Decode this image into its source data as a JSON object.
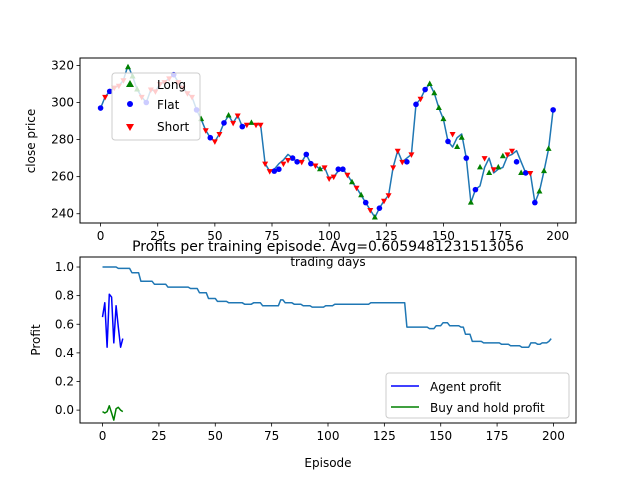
{
  "colors": {
    "price_line": "#1f77b4",
    "long": "#008000",
    "flat": "#0000ff",
    "short": "#ff0000",
    "agent": "#0000ff",
    "buyhold": "#008000",
    "profit_line": "#1f77b4"
  },
  "chart_data": [
    {
      "type": "line",
      "title": "",
      "xlabel": "trading days",
      "ylabel": "close price",
      "xlim": [
        -9,
        208
      ],
      "ylim": [
        235,
        324
      ],
      "xticks": [
        0,
        25,
        50,
        75,
        100,
        125,
        150,
        175,
        200
      ],
      "yticks": [
        240,
        260,
        280,
        300,
        320
      ],
      "legend": {
        "position": "upper-left",
        "entries": [
          "Long",
          "Flat",
          "Short"
        ]
      },
      "x": [
        0,
        2,
        4,
        6,
        8,
        10,
        12,
        14,
        16,
        18,
        20,
        22,
        24,
        26,
        28,
        30,
        32,
        34,
        36,
        38,
        40,
        42,
        44,
        46,
        48,
        50,
        52,
        54,
        56,
        58,
        60,
        62,
        64,
        66,
        68,
        70,
        72,
        74,
        76,
        78,
        80,
        82,
        84,
        86,
        88,
        90,
        92,
        94,
        96,
        98,
        100,
        102,
        104,
        106,
        108,
        110,
        112,
        114,
        116,
        118,
        120,
        122,
        124,
        126,
        128,
        130,
        132,
        134,
        136,
        138,
        140,
        142,
        144,
        146,
        148,
        150,
        152,
        154,
        156,
        158,
        160,
        162,
        164,
        166,
        168,
        170,
        172,
        174,
        176,
        178,
        180,
        182,
        184,
        186,
        188,
        190,
        192,
        194,
        196,
        198
      ],
      "series": [
        {
          "name": "close price",
          "values": [
            297,
            303,
            306,
            308,
            309,
            312,
            320,
            314,
            307,
            303,
            300,
            307,
            306,
            310,
            311,
            313,
            315,
            311,
            308,
            305,
            303,
            296,
            291,
            285,
            281,
            279,
            283,
            289,
            293,
            289,
            293,
            287,
            288,
            289,
            288,
            288,
            267,
            263,
            264,
            267,
            269,
            272,
            270,
            268,
            268,
            272,
            267,
            266,
            264,
            265,
            259,
            260,
            263,
            264,
            261,
            257,
            254,
            250,
            246,
            242,
            238,
            243,
            247,
            250,
            265,
            274,
            268,
            270,
            272,
            299,
            302,
            307,
            310,
            305,
            297,
            291,
            279,
            276,
            281,
            283,
            270,
            246,
            253,
            255,
            265,
            270,
            262,
            264,
            265,
            271,
            272,
            274,
            268,
            262,
            262,
            246,
            252,
            263,
            275,
            296
          ]
        }
      ],
      "markers": {
        "long": [
          [
            12,
            319
          ],
          [
            14,
            314
          ],
          [
            16,
            307
          ],
          [
            44,
            291
          ],
          [
            56,
            293
          ],
          [
            66,
            289
          ],
          [
            96,
            264
          ],
          [
            110,
            257
          ],
          [
            114,
            250
          ],
          [
            120,
            238
          ],
          [
            144,
            310
          ],
          [
            146,
            305
          ],
          [
            148,
            297
          ],
          [
            150,
            291
          ],
          [
            156,
            276
          ],
          [
            158,
            281
          ],
          [
            162,
            246
          ],
          [
            166,
            265
          ],
          [
            170,
            262
          ],
          [
            174,
            265
          ],
          [
            176,
            271
          ],
          [
            184,
            262
          ],
          [
            192,
            252
          ],
          [
            194,
            263
          ],
          [
            196,
            275
          ]
        ],
        "flat": [
          [
            0,
            297
          ],
          [
            4,
            306
          ],
          [
            20,
            300
          ],
          [
            32,
            315
          ],
          [
            42,
            296
          ],
          [
            48,
            281
          ],
          [
            54,
            289
          ],
          [
            62,
            287
          ],
          [
            76,
            263
          ],
          [
            78,
            264
          ],
          [
            84,
            270
          ],
          [
            86,
            268
          ],
          [
            90,
            272
          ],
          [
            92,
            267
          ],
          [
            104,
            264
          ],
          [
            106,
            264
          ],
          [
            116,
            246
          ],
          [
            122,
            243
          ],
          [
            134,
            268
          ],
          [
            138,
            299
          ],
          [
            142,
            307
          ],
          [
            152,
            279
          ],
          [
            160,
            270
          ],
          [
            164,
            253
          ],
          [
            182,
            268
          ],
          [
            186,
            262
          ],
          [
            190,
            246
          ],
          [
            198,
            296
          ]
        ],
        "short": [
          [
            2,
            303
          ],
          [
            6,
            308
          ],
          [
            8,
            309
          ],
          [
            10,
            312
          ],
          [
            18,
            303
          ],
          [
            22,
            307
          ],
          [
            24,
            306
          ],
          [
            26,
            310
          ],
          [
            28,
            311
          ],
          [
            30,
            313
          ],
          [
            34,
            311
          ],
          [
            36,
            308
          ],
          [
            38,
            305
          ],
          [
            40,
            303
          ],
          [
            46,
            285
          ],
          [
            50,
            279
          ],
          [
            52,
            283
          ],
          [
            58,
            289
          ],
          [
            60,
            293
          ],
          [
            64,
            288
          ],
          [
            68,
            288
          ],
          [
            70,
            288
          ],
          [
            72,
            267
          ],
          [
            74,
            263
          ],
          [
            80,
            267
          ],
          [
            82,
            269
          ],
          [
            88,
            268
          ],
          [
            94,
            266
          ],
          [
            98,
            265
          ],
          [
            100,
            259
          ],
          [
            102,
            260
          ],
          [
            108,
            261
          ],
          [
            112,
            254
          ],
          [
            118,
            242
          ],
          [
            124,
            247
          ],
          [
            126,
            250
          ],
          [
            128,
            265
          ],
          [
            130,
            274
          ],
          [
            132,
            268
          ],
          [
            136,
            272
          ],
          [
            140,
            302
          ],
          [
            154,
            283
          ],
          [
            168,
            270
          ],
          [
            172,
            264
          ],
          [
            178,
            272
          ],
          [
            180,
            274
          ],
          [
            188,
            262
          ]
        ]
      }
    },
    {
      "type": "line",
      "title": "Profits per training episode. Avg=0.6059481231513056",
      "xlabel": "Episode",
      "ylabel": "Profit",
      "xlim": [
        -10,
        210
      ],
      "ylim": [
        -0.09,
        1.07
      ],
      "xticks": [
        0,
        25,
        50,
        75,
        100,
        125,
        150,
        175,
        200
      ],
      "yticks": [
        0.0,
        0.2,
        0.4,
        0.6,
        0.8,
        1.0
      ],
      "legend": {
        "position": "lower-right",
        "entries": [
          "Agent profit",
          "Buy and hold profit"
        ]
      },
      "series": [
        {
          "name": "profit",
          "x": [
            0,
            6,
            7,
            12,
            13,
            16,
            17,
            22,
            23,
            28,
            29,
            38,
            39,
            42,
            43,
            46,
            47,
            50,
            51,
            55,
            56,
            62,
            63,
            66,
            67,
            70,
            71,
            78,
            79,
            80,
            81,
            84,
            85,
            88,
            89,
            92,
            93,
            98,
            99,
            102,
            103,
            108,
            109,
            118,
            119,
            134,
            135,
            144,
            145,
            147,
            148,
            150,
            151,
            153,
            154,
            158,
            159,
            160,
            161,
            163,
            164,
            168,
            169,
            176,
            177,
            180,
            181,
            185,
            186,
            189,
            190,
            192,
            193,
            194,
            195,
            197,
            198,
            199
          ],
          "values": [
            1.0,
            1.0,
            0.99,
            0.99,
            0.96,
            0.96,
            0.9,
            0.9,
            0.88,
            0.88,
            0.86,
            0.86,
            0.85,
            0.85,
            0.82,
            0.82,
            0.78,
            0.78,
            0.76,
            0.76,
            0.75,
            0.75,
            0.74,
            0.74,
            0.75,
            0.75,
            0.73,
            0.73,
            0.77,
            0.77,
            0.75,
            0.75,
            0.74,
            0.74,
            0.73,
            0.73,
            0.72,
            0.72,
            0.73,
            0.73,
            0.74,
            0.74,
            0.74,
            0.74,
            0.75,
            0.75,
            0.58,
            0.58,
            0.57,
            0.57,
            0.59,
            0.59,
            0.61,
            0.61,
            0.59,
            0.59,
            0.58,
            0.58,
            0.53,
            0.53,
            0.48,
            0.48,
            0.47,
            0.47,
            0.46,
            0.46,
            0.45,
            0.45,
            0.44,
            0.44,
            0.47,
            0.47,
            0.46,
            0.46,
            0.47,
            0.47,
            0.48,
            0.5
          ]
        },
        {
          "name": "Agent profit",
          "x": [
            0,
            1,
            2,
            3,
            4,
            5,
            6,
            7,
            8,
            9
          ],
          "values": [
            0.65,
            0.75,
            0.44,
            0.81,
            0.79,
            0.47,
            0.73,
            0.58,
            0.44,
            0.5
          ]
        },
        {
          "name": "Buy and hold profit",
          "x": [
            0,
            1,
            2,
            3,
            4,
            5,
            6,
            7,
            8,
            9
          ],
          "values": [
            -0.01,
            -0.02,
            -0.01,
            0.03,
            -0.02,
            -0.07,
            0.01,
            0.02,
            0.0,
            -0.01
          ]
        }
      ]
    }
  ]
}
